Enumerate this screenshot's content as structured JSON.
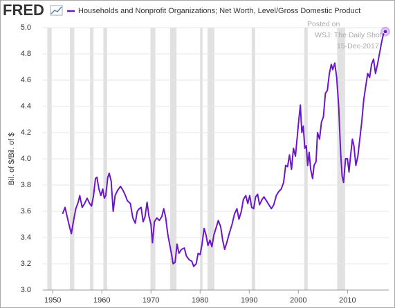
{
  "chart_data": {
    "type": "line",
    "brand": "FRED",
    "title": "Households and Nonprofit Organizations; Net Worth, Level/Gross Domestic Product",
    "y_label": "Bil. of $/Bil. of $",
    "annotation": [
      "Posted on",
      "WSJ: The Daily Shot",
      "15-Dec-2017"
    ],
    "xlim": [
      1948,
      2018.4
    ],
    "xticks": [
      1950,
      1960,
      1970,
      1980,
      1990,
      2000,
      2010
    ],
    "ylim": [
      3,
      5
    ],
    "yticks": [
      {
        "value": 3,
        "label": "3.0"
      },
      3.2,
      3.4,
      3.6,
      3.8,
      {
        "value": 4,
        "label": "4.0"
      },
      4.2,
      4.4,
      4.6,
      4.8,
      {
        "value": 5,
        "label": "5.0"
      }
    ],
    "grid": true,
    "recessions": [
      [
        1948.9,
        1949.8
      ],
      [
        1953.5,
        1954.4
      ],
      [
        1957.6,
        1958.3
      ],
      [
        1960.3,
        1961.1
      ],
      [
        1969.9,
        1970.9
      ],
      [
        1973.9,
        1975.2
      ],
      [
        1980.0,
        1980.5
      ],
      [
        1981.5,
        1982.9
      ],
      [
        1990.5,
        1991.2
      ],
      [
        2001.2,
        2001.9
      ],
      [
        2007.9,
        2009.5
      ]
    ],
    "x": [
      1952.0,
      1952.5,
      1953.0,
      1953.5,
      1953.8,
      1954.2,
      1954.7,
      1955.2,
      1955.5,
      1956.0,
      1956.5,
      1957.0,
      1957.5,
      1957.9,
      1958.3,
      1958.7,
      1959.0,
      1959.4,
      1959.8,
      1960.2,
      1960.5,
      1960.8,
      1961.2,
      1961.5,
      1961.9,
      1962.3,
      1962.7,
      1963.2,
      1963.8,
      1964.3,
      1964.8,
      1965.2,
      1965.8,
      1966.3,
      1966.8,
      1967.2,
      1967.6,
      1968.0,
      1968.4,
      1968.8,
      1969.2,
      1969.6,
      1970.0,
      1970.3,
      1970.7,
      1971.2,
      1971.7,
      1972.2,
      1972.6,
      1973.0,
      1973.4,
      1973.8,
      1974.2,
      1974.5,
      1974.9,
      1975.3,
      1975.7,
      1976.2,
      1976.8,
      1977.2,
      1977.8,
      1978.3,
      1978.7,
      1979.2,
      1979.6,
      1980.0,
      1980.4,
      1980.8,
      1981.2,
      1981.6,
      1982.0,
      1982.4,
      1982.8,
      1983.3,
      1983.7,
      1984.2,
      1984.6,
      1985.0,
      1985.5,
      1986.0,
      1986.5,
      1987.0,
      1987.5,
      1987.9,
      1988.4,
      1988.8,
      1989.3,
      1989.7,
      1990.1,
      1990.5,
      1990.9,
      1991.3,
      1991.7,
      1992.1,
      1992.6,
      1993.0,
      1993.5,
      1994.0,
      1994.5,
      1995.0,
      1995.5,
      1996.0,
      1996.5,
      1997.0,
      1997.4,
      1997.8,
      1998.2,
      1998.6,
      1999.0,
      1999.4,
      1999.8,
      2000.1,
      2000.4,
      2000.7,
      2001.0,
      2001.3,
      2001.6,
      2001.9,
      2002.2,
      2002.5,
      2002.9,
      2003.2,
      2003.6,
      2003.9,
      2004.3,
      2004.7,
      2005.1,
      2005.5,
      2005.9,
      2006.3,
      2006.7,
      2007.0,
      2007.4,
      2007.8,
      2008.2,
      2008.6,
      2008.9,
      2009.2,
      2009.6,
      2010.0,
      2010.3,
      2010.7,
      2011.0,
      2011.3,
      2011.7,
      2012.1,
      2012.5,
      2012.9,
      2013.3,
      2013.7,
      2014.1,
      2014.5,
      2014.9,
      2015.3,
      2015.7,
      2016.1,
      2016.5,
      2016.9,
      2017.3,
      2017.7
    ],
    "series": [
      {
        "name": "Households and Nonprofit Organizations; Net Worth, Level/Gross Domestic Product",
        "color": "#6a16c9",
        "values": [
          3.58,
          3.63,
          3.55,
          3.47,
          3.43,
          3.52,
          3.62,
          3.67,
          3.72,
          3.63,
          3.66,
          3.7,
          3.66,
          3.64,
          3.72,
          3.85,
          3.86,
          3.77,
          3.72,
          3.77,
          3.7,
          3.72,
          3.86,
          3.89,
          3.83,
          3.6,
          3.72,
          3.76,
          3.79,
          3.76,
          3.72,
          3.68,
          3.66,
          3.55,
          3.51,
          3.6,
          3.62,
          3.63,
          3.52,
          3.56,
          3.67,
          3.56,
          3.5,
          3.36,
          3.52,
          3.55,
          3.53,
          3.56,
          3.62,
          3.55,
          3.43,
          3.35,
          3.27,
          3.2,
          3.21,
          3.35,
          3.28,
          3.31,
          3.32,
          3.26,
          3.23,
          3.22,
          3.18,
          3.2,
          3.28,
          3.27,
          3.35,
          3.47,
          3.42,
          3.34,
          3.38,
          3.33,
          3.42,
          3.48,
          3.53,
          3.48,
          3.38,
          3.31,
          3.37,
          3.44,
          3.5,
          3.58,
          3.62,
          3.54,
          3.6,
          3.69,
          3.72,
          3.66,
          3.72,
          3.63,
          3.62,
          3.71,
          3.73,
          3.65,
          3.69,
          3.71,
          3.68,
          3.65,
          3.62,
          3.65,
          3.72,
          3.75,
          3.77,
          3.82,
          3.95,
          3.94,
          4.03,
          3.92,
          4.08,
          4.02,
          4.18,
          4.3,
          4.41,
          4.2,
          4.25,
          4.08,
          4.1,
          3.95,
          4.05,
          3.92,
          3.85,
          3.95,
          3.98,
          4.2,
          4.15,
          4.28,
          4.32,
          4.5,
          4.52,
          4.65,
          4.72,
          4.68,
          4.73,
          4.62,
          4.4,
          4.05,
          3.87,
          3.82,
          4.0,
          4.0,
          3.9,
          4.05,
          4.15,
          4.1,
          3.95,
          4.02,
          4.15,
          4.28,
          4.45,
          4.55,
          4.65,
          4.62,
          4.72,
          4.76,
          4.65,
          4.72,
          4.8,
          4.88,
          4.95,
          4.97
        ]
      }
    ]
  }
}
